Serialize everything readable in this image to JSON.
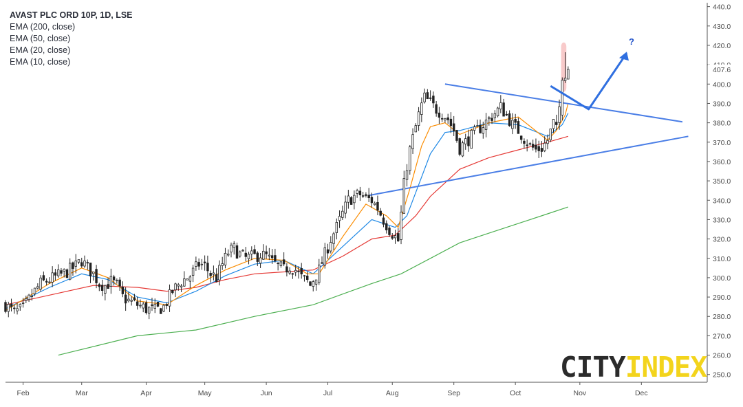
{
  "legend": {
    "title": "AVAST PLC ORD 10P, 1D, LSE",
    "ema200": "EMA (200, close)",
    "ema50": "EMA (50, close)",
    "ema20": "EMA (20, close)",
    "ema10": "EMA (10, close)"
  },
  "logo": {
    "part1": "CITY",
    "part2": "INDEX"
  },
  "colors": {
    "up": "#ffffff",
    "down": "#222222",
    "wick": "#222222",
    "ema200": "#4caf50",
    "ema50": "#e53935",
    "ema20": "#1e88e5",
    "ema10": "#fb8c00",
    "trendline": "#4a7ee6",
    "highlight": "#f4a6a6",
    "arrow": "#2f6fe0",
    "question": "#1e4fc8"
  },
  "chart_data": {
    "type": "candlestick",
    "title": "AVAST PLC ORD 10P, 1D, LSE",
    "ylim": [
      246,
      442
    ],
    "y_ticks": [
      250,
      260,
      270,
      280,
      290,
      300,
      310,
      320,
      330,
      340,
      350,
      360,
      370,
      380,
      390,
      400,
      410,
      420,
      430,
      440
    ],
    "current_price_label": "407.6",
    "current_price": 407.6,
    "x_months": [
      {
        "label": "Feb",
        "day": 21
      },
      {
        "label": "Mar",
        "day": 41
      },
      {
        "label": "Apr",
        "day": 63
      },
      {
        "label": "May",
        "day": 83
      },
      {
        "label": "Jun",
        "day": 104
      },
      {
        "label": "Jul",
        "day": 125
      },
      {
        "label": "Aug",
        "day": 147
      },
      {
        "label": "Sep",
        "day": 168
      },
      {
        "label": "Oct",
        "day": 189
      },
      {
        "label": "Nov",
        "day": 211
      },
      {
        "label": "Dec",
        "day": 232
      }
    ],
    "x_range_days": [
      15,
      254
    ],
    "price_path": [
      [
        15,
        286
      ],
      [
        18,
        282
      ],
      [
        21,
        284
      ],
      [
        24,
        291
      ],
      [
        27,
        297
      ],
      [
        30,
        299
      ],
      [
        33,
        301
      ],
      [
        36,
        303
      ],
      [
        39,
        306
      ],
      [
        41,
        309
      ],
      [
        43,
        305
      ],
      [
        45,
        302
      ],
      [
        47,
        297
      ],
      [
        49,
        296
      ],
      [
        51,
        298
      ],
      [
        53,
        296
      ],
      [
        55,
        290
      ],
      [
        57,
        288
      ],
      [
        60,
        286
      ],
      [
        63,
        284
      ],
      [
        66,
        283
      ],
      [
        69,
        285
      ],
      [
        72,
        293
      ],
      [
        75,
        298
      ],
      [
        78,
        301
      ],
      [
        81,
        307
      ],
      [
        83,
        306
      ],
      [
        85,
        302
      ],
      [
        87,
        300
      ],
      [
        89,
        307
      ],
      [
        91,
        313
      ],
      [
        93,
        315
      ],
      [
        95,
        312
      ],
      [
        97,
        310
      ],
      [
        100,
        311
      ],
      [
        102,
        312
      ],
      [
        104,
        311
      ],
      [
        106,
        308
      ],
      [
        108,
        306
      ],
      [
        110,
        304
      ],
      [
        112,
        306
      ],
      [
        114,
        304
      ],
      [
        116,
        300
      ],
      [
        118,
        298
      ],
      [
        119,
        296
      ],
      [
        120,
        299
      ],
      [
        122,
        304
      ],
      [
        124,
        312
      ],
      [
        126,
        320
      ],
      [
        128,
        326
      ],
      [
        130,
        333
      ],
      [
        132,
        340
      ],
      [
        134,
        342
      ],
      [
        136,
        343
      ],
      [
        138,
        341
      ],
      [
        140,
        340
      ],
      [
        142,
        336
      ],
      [
        144,
        330
      ],
      [
        146,
        325
      ],
      [
        148,
        321
      ],
      [
        149,
        319
      ],
      [
        150,
        333
      ],
      [
        151,
        348
      ],
      [
        152,
        358
      ],
      [
        153,
        366
      ],
      [
        154,
        372
      ],
      [
        155,
        378
      ],
      [
        156,
        384
      ],
      [
        157,
        389
      ],
      [
        158,
        393
      ],
      [
        160,
        390
      ],
      [
        162,
        387
      ],
      [
        164,
        385
      ],
      [
        166,
        382
      ],
      [
        168,
        376
      ],
      [
        170,
        367
      ],
      [
        172,
        370
      ],
      [
        174,
        373
      ],
      [
        176,
        376
      ],
      [
        178,
        379
      ],
      [
        180,
        382
      ],
      [
        182,
        385
      ],
      [
        184,
        388
      ],
      [
        186,
        384
      ],
      [
        188,
        379
      ],
      [
        190,
        376
      ],
      [
        192,
        372
      ],
      [
        194,
        368
      ],
      [
        196,
        366
      ],
      [
        198,
        367
      ],
      [
        200,
        371
      ],
      [
        202,
        380
      ],
      [
        203,
        376
      ],
      [
        204,
        388
      ],
      [
        205,
        402
      ],
      [
        206,
        406
      ],
      [
        207,
        407.6
      ]
    ],
    "ema_series": [
      {
        "key": "ema200",
        "points": [
          [
            33,
            260
          ],
          [
            60,
            270
          ],
          [
            80,
            273
          ],
          [
            100,
            280
          ],
          [
            120,
            286
          ],
          [
            140,
            297
          ],
          [
            150,
            302
          ],
          [
            160,
            310
          ],
          [
            170,
            318
          ],
          [
            180,
            323
          ],
          [
            190,
            328
          ],
          [
            200,
            333
          ],
          [
            207,
            336.5
          ]
        ]
      },
      {
        "key": "ema50",
        "points": [
          [
            15,
            286
          ],
          [
            30,
            291
          ],
          [
            45,
            296
          ],
          [
            60,
            295
          ],
          [
            70,
            293
          ],
          [
            80,
            295
          ],
          [
            90,
            299
          ],
          [
            100,
            302
          ],
          [
            110,
            303
          ],
          [
            120,
            304
          ],
          [
            130,
            311
          ],
          [
            140,
            320
          ],
          [
            148,
            322
          ],
          [
            155,
            332
          ],
          [
            160,
            342
          ],
          [
            170,
            356
          ],
          [
            180,
            362
          ],
          [
            190,
            366
          ],
          [
            200,
            370
          ],
          [
            207,
            373
          ]
        ]
      },
      {
        "key": "ema20",
        "points": [
          [
            15,
            284
          ],
          [
            30,
            295
          ],
          [
            41,
            302
          ],
          [
            50,
            299
          ],
          [
            60,
            290
          ],
          [
            70,
            287
          ],
          [
            80,
            293
          ],
          [
            90,
            301
          ],
          [
            100,
            307
          ],
          [
            110,
            309
          ],
          [
            120,
            302
          ],
          [
            130,
            316
          ],
          [
            140,
            330
          ],
          [
            148,
            326
          ],
          [
            152,
            332
          ],
          [
            156,
            348
          ],
          [
            160,
            364
          ],
          [
            165,
            375
          ],
          [
            170,
            376
          ],
          [
            180,
            380
          ],
          [
            190,
            379
          ],
          [
            200,
            373
          ],
          [
            205,
            379
          ],
          [
            207,
            385
          ]
        ]
      },
      {
        "key": "ema10",
        "points": [
          [
            15,
            283
          ],
          [
            30,
            297
          ],
          [
            41,
            305
          ],
          [
            50,
            300
          ],
          [
            60,
            288
          ],
          [
            70,
            286
          ],
          [
            80,
            296
          ],
          [
            90,
            304
          ],
          [
            100,
            310
          ],
          [
            110,
            309
          ],
          [
            118,
            302
          ],
          [
            122,
            302
          ],
          [
            130,
            321
          ],
          [
            138,
            338
          ],
          [
            145,
            332
          ],
          [
            149,
            326
          ],
          [
            153,
            346
          ],
          [
            157,
            368
          ],
          [
            160,
            378
          ],
          [
            165,
            380
          ],
          [
            170,
            374
          ],
          [
            180,
            380
          ],
          [
            190,
            383
          ],
          [
            200,
            371
          ],
          [
            203,
            376
          ],
          [
            206,
            384
          ],
          [
            207,
            390
          ]
        ]
      }
    ],
    "trendlines": [
      {
        "name": "resistance",
        "from": [
          165,
          400
        ],
        "to": [
          246,
          380.5
        ]
      },
      {
        "name": "support",
        "from": [
          139,
          342.5
        ],
        "to": [
          248,
          373
        ]
      }
    ],
    "projection_arrow": [
      [
        201,
        399
      ],
      [
        214,
        387
      ],
      [
        227,
        416
      ]
    ],
    "projection_label": "?"
  }
}
